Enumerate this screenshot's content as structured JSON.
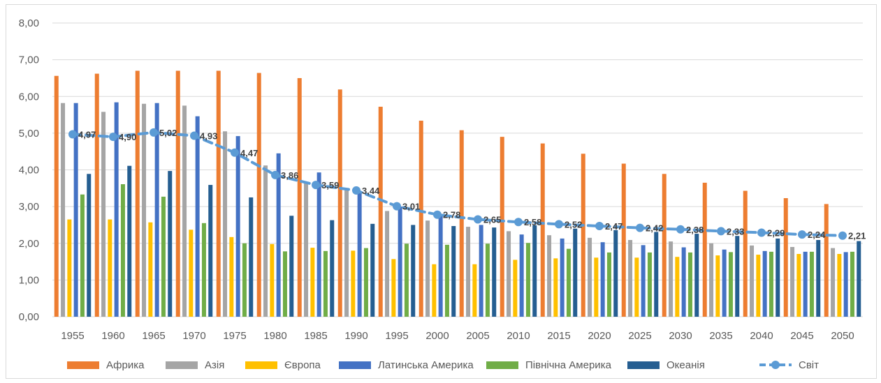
{
  "chart_data": {
    "type": "bar",
    "title": "",
    "xlabel": "",
    "ylabel": "",
    "ylim": [
      0,
      8
    ],
    "yticks": [
      "0,00",
      "1,00",
      "2,00",
      "3,00",
      "4,00",
      "5,00",
      "6,00",
      "7,00",
      "8,00"
    ],
    "grid": true,
    "legend_position": "bottom",
    "categories": [
      "1955",
      "1960",
      "1965",
      "1970",
      "1975",
      "1980",
      "1985",
      "1990",
      "1995",
      "2000",
      "2005",
      "2010",
      "2015",
      "2020",
      "2025",
      "2030",
      "2035",
      "2040",
      "2045",
      "2050"
    ],
    "series": [
      {
        "name": "Африка",
        "type": "bar",
        "color": "#ED7D31",
        "values": [
          6.56,
          6.62,
          6.7,
          6.7,
          6.7,
          6.64,
          6.5,
          6.19,
          5.72,
          5.34,
          5.08,
          4.9,
          4.72,
          4.44,
          4.17,
          3.89,
          3.65,
          3.43,
          3.23,
          3.07
        ]
      },
      {
        "name": "Азія",
        "type": "bar",
        "color": "#A5A5A5",
        "values": [
          5.82,
          5.58,
          5.8,
          5.75,
          5.05,
          4.12,
          3.65,
          3.45,
          2.88,
          2.62,
          2.45,
          2.33,
          2.22,
          2.15,
          2.09,
          2.05,
          2.0,
          1.94,
          1.9,
          1.87
        ]
      },
      {
        "name": "Європа",
        "type": "bar",
        "color": "#FFC000",
        "values": [
          2.65,
          2.65,
          2.57,
          2.37,
          2.17,
          1.98,
          1.88,
          1.8,
          1.57,
          1.43,
          1.43,
          1.55,
          1.59,
          1.61,
          1.61,
          1.63,
          1.67,
          1.69,
          1.71,
          1.71
        ]
      },
      {
        "name": "Латинська Америка",
        "type": "bar",
        "color": "#4472C4",
        "values": [
          5.82,
          5.84,
          5.82,
          5.46,
          4.92,
          4.45,
          3.93,
          3.4,
          3.0,
          2.8,
          2.5,
          2.24,
          2.13,
          2.03,
          1.95,
          1.89,
          1.83,
          1.79,
          1.77,
          1.76
        ]
      },
      {
        "name": "Північна Америка",
        "type": "bar",
        "color": "#70AD47",
        "values": [
          3.33,
          3.61,
          3.27,
          2.55,
          2.0,
          1.78,
          1.79,
          1.87,
          1.99,
          1.96,
          1.99,
          2.01,
          1.85,
          1.75,
          1.75,
          1.75,
          1.76,
          1.77,
          1.77,
          1.77
        ]
      },
      {
        "name": "Океанія",
        "type": "bar",
        "color": "#255E91",
        "values": [
          3.89,
          4.11,
          3.97,
          3.59,
          3.25,
          2.75,
          2.63,
          2.53,
          2.5,
          2.47,
          2.43,
          2.49,
          2.4,
          2.36,
          2.31,
          2.26,
          2.2,
          2.13,
          2.09,
          2.06
        ]
      },
      {
        "name": "Світ",
        "type": "line",
        "color": "#5B9BD5",
        "values": [
          4.97,
          4.9,
          5.02,
          4.93,
          4.47,
          3.86,
          3.59,
          3.44,
          3.01,
          2.78,
          2.65,
          2.58,
          2.52,
          2.47,
          2.42,
          2.38,
          2.33,
          2.29,
          2.24,
          2.21
        ],
        "labels": [
          "4,97",
          "4,90",
          "5,02",
          "4,93",
          "4,47",
          "3,86",
          "3,59",
          "3,44",
          "3,01",
          "2,78",
          "2,65",
          "2,58",
          "2,52",
          "2,47",
          "2,42",
          "2,38",
          "2,33",
          "2,29",
          "2,24",
          "2,21"
        ]
      }
    ]
  }
}
